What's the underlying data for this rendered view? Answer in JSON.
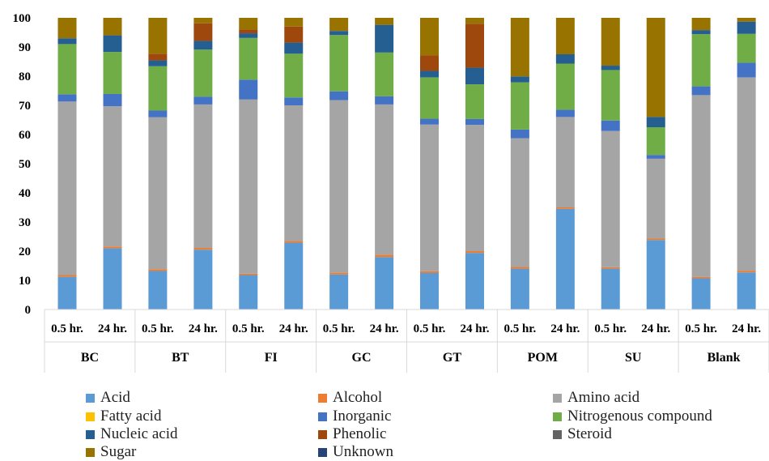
{
  "chart_data": {
    "type": "bar",
    "stacked": true,
    "ylim": [
      0,
      100
    ],
    "yticks": [
      0,
      10,
      20,
      30,
      40,
      50,
      60,
      70,
      80,
      90,
      100
    ],
    "groups": [
      {
        "name": "BC",
        "subs": [
          "0.5 hr.",
          "24 hr."
        ]
      },
      {
        "name": "BT",
        "subs": [
          "0.5 hr.",
          "24 hr."
        ]
      },
      {
        "name": "FI",
        "subs": [
          "0.5 hr.",
          "24 hr."
        ]
      },
      {
        "name": "GC",
        "subs": [
          "0.5 hr.",
          "24 hr."
        ]
      },
      {
        "name": "GT",
        "subs": [
          "0.5 hr.",
          "24 hr."
        ]
      },
      {
        "name": "POM",
        "subs": [
          "0.5 hr.",
          "24 hr."
        ]
      },
      {
        "name": "SU",
        "subs": [
          "0.5 hr.",
          "24 hr."
        ]
      },
      {
        "name": "Blank",
        "subs": [
          "0.5 hr.",
          "24 hr."
        ]
      }
    ],
    "series": [
      {
        "name": "Acid",
        "color": "#5B9BD5",
        "values": [
          11.2,
          21.0,
          13.2,
          20.5,
          11.8,
          22.9,
          12.0,
          18.0,
          12.5,
          19.4,
          14.0,
          34.5,
          14.0,
          23.8,
          10.7,
          12.7
        ]
      },
      {
        "name": "Alcohol",
        "color": "#ED7D31",
        "values": [
          0.6,
          0.6,
          0.6,
          0.6,
          0.5,
          0.6,
          0.6,
          0.8,
          0.6,
          0.6,
          0.6,
          0.5,
          0.5,
          0.5,
          0.5,
          0.6
        ]
      },
      {
        "name": "Amino acid",
        "color": "#A5A5A5",
        "values": [
          59.5,
          48.1,
          52.1,
          49.2,
          59.7,
          46.5,
          59.2,
          51.5,
          50.3,
          43.3,
          44.1,
          31.0,
          46.7,
          27.4,
          62.3,
          66.3
        ]
      },
      {
        "name": "Fatty acid",
        "color": "#FFC000",
        "values": [
          0,
          0,
          0,
          0,
          0,
          0,
          0,
          0,
          0,
          0,
          0,
          0,
          0,
          0,
          0,
          0
        ]
      },
      {
        "name": "Inorganic",
        "color": "#4472C4",
        "values": [
          2.5,
          4.2,
          2.3,
          2.7,
          6.8,
          2.7,
          3.0,
          2.8,
          2.0,
          2.0,
          3.0,
          2.5,
          3.6,
          1.3,
          3.0,
          5.0
        ]
      },
      {
        "name": "Nitrogenous compound",
        "color": "#70AD47",
        "values": [
          17.2,
          14.4,
          15.2,
          16.1,
          14.3,
          15.0,
          19.3,
          15.0,
          14.2,
          11.9,
          16.2,
          15.8,
          17.3,
          9.5,
          17.9,
          9.9
        ]
      },
      {
        "name": "Nucleic acid",
        "color": "#255E91",
        "values": [
          2.0,
          5.7,
          2.0,
          3.0,
          1.6,
          3.8,
          1.4,
          9.5,
          2.2,
          5.7,
          2.0,
          3.2,
          1.5,
          3.5,
          1.4,
          4.2
        ]
      },
      {
        "name": "Phenolic",
        "color": "#9E480E",
        "values": [
          0,
          0,
          2.3,
          6.0,
          1.3,
          5.5,
          0,
          0,
          5.3,
          15.1,
          0,
          0,
          0,
          0,
          0,
          0
        ]
      },
      {
        "name": "Steroid",
        "color": "#636363",
        "values": [
          0,
          0,
          0,
          0,
          0,
          0,
          0,
          0,
          0,
          0,
          0,
          0,
          0,
          0,
          0,
          0
        ]
      },
      {
        "name": "Sugar",
        "color": "#997300",
        "values": [
          7.0,
          6.0,
          12.3,
          1.9,
          4.0,
          3.0,
          4.5,
          2.4,
          12.9,
          2.0,
          20.1,
          12.5,
          16.4,
          34.0,
          4.2,
          1.3
        ]
      },
      {
        "name": "Unknown",
        "color": "#264478",
        "values": [
          0,
          0,
          0,
          0,
          0,
          0,
          0,
          0,
          0,
          0,
          0,
          0,
          0,
          0,
          0,
          0
        ]
      }
    ],
    "legend": {
      "position": "bottom"
    },
    "grid": false
  }
}
